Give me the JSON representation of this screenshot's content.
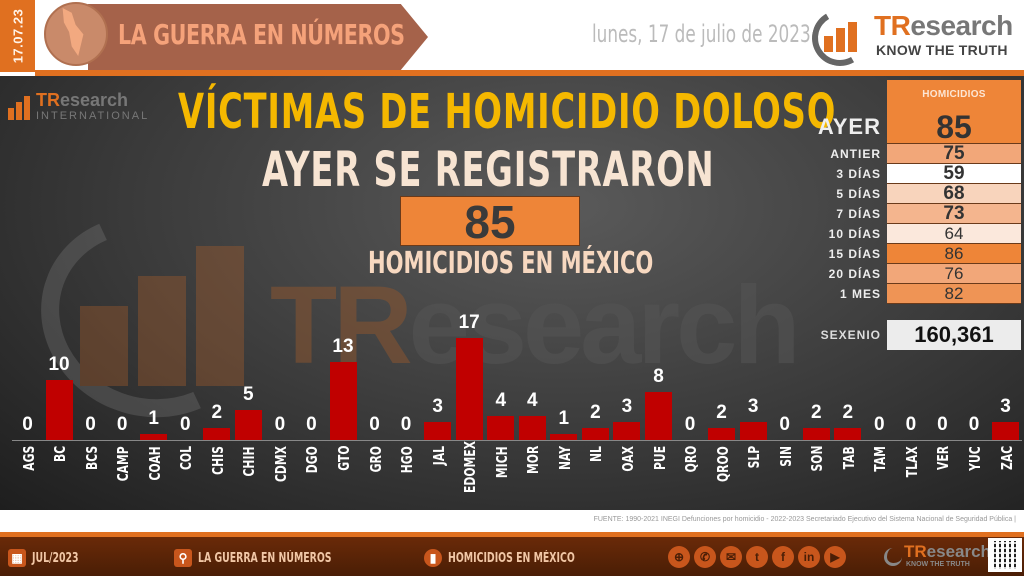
{
  "header": {
    "date_short": "17.07.23",
    "banner_title": "LA GUERRA EN NÚMEROS",
    "date_long": "lunes, 17 de julio de 2023",
    "logo_brand_tr": "TR",
    "logo_brand_rest": "esearch",
    "logo_tagline": "KNOW THE TRUTH",
    "accent_color": "#e07020"
  },
  "main": {
    "intl_logo_tr": "TR",
    "intl_logo_rest": "esearch",
    "intl_logo_sub": "INTERNATIONAL",
    "title": "VÍCTIMAS DE HOMICIDIO DOLOSO",
    "subtitle_top": "AYER SE REGISTRARON",
    "big_number": "85",
    "subtitle_bottom": "HOMICIDIOS EN MÉXICO",
    "watermark_tr": "TR",
    "watermark_rest": "esearch"
  },
  "stats": {
    "header": "HOMICIDIOS",
    "rows": [
      {
        "label": "AYER",
        "value": "85",
        "bg": "#ee8538"
      },
      {
        "label": "ANTIER",
        "value": "75",
        "bg": "#f2a779"
      },
      {
        "label": "3 DÍAS",
        "value": "59",
        "bg": "#ffffff"
      },
      {
        "label": "5 DÍAS",
        "value": "68",
        "bg": "#f8d4bc"
      },
      {
        "label": "7 DÍAS",
        "value": "73",
        "bg": "#f4b58e"
      },
      {
        "label": "10 DÍAS",
        "value": "64",
        "bg": "#fbe8dc"
      },
      {
        "label": "15 DÍAS",
        "value": "86",
        "bg": "#ee8538"
      },
      {
        "label": "20 DÍAS",
        "value": "76",
        "bg": "#f2a779"
      },
      {
        "label": "1 MES",
        "value": "82",
        "bg": "#ef9455"
      }
    ],
    "sexenio_label": "SEXENIO",
    "sexenio_value": "160,361"
  },
  "chart_data": {
    "type": "bar",
    "title": "VÍCTIMAS DE HOMICIDIO DOLOSO",
    "subtitle": "AYER SE REGISTRARON 85 HOMICIDIOS EN MÉXICO",
    "xlabel": "",
    "ylabel": "",
    "categories": [
      "AGS",
      "BC",
      "BCS",
      "CAMP",
      "COAH",
      "COL",
      "CHIS",
      "CHIH",
      "CDMX",
      "DGO",
      "GTO",
      "GRO",
      "HGO",
      "JAL",
      "EDOMEX",
      "MICH",
      "MOR",
      "NAY",
      "NL",
      "OAX",
      "PUE",
      "QRO",
      "QROO",
      "SLP",
      "SIN",
      "SON",
      "TAB",
      "TAM",
      "TLAX",
      "VER",
      "YUC",
      "ZAC"
    ],
    "values": [
      0,
      10,
      0,
      0,
      1,
      0,
      2,
      5,
      0,
      0,
      13,
      0,
      0,
      3,
      17,
      4,
      4,
      1,
      2,
      3,
      8,
      0,
      2,
      3,
      0,
      2,
      2,
      0,
      0,
      0,
      0,
      3
    ],
    "bar_color": "#c00000",
    "grid": false,
    "data_labels": true,
    "ylim": [
      0,
      17
    ]
  },
  "source": {
    "text": "FUENTE: 1990-2021 INEGI Defunciones por homicidio - 2022-2023 Secretariado Ejecutivo del Sistema Nacional de Seguridad Pública |"
  },
  "footer": {
    "items": [
      {
        "icon": "calendar-icon",
        "label": "JUL/2023"
      },
      {
        "icon": "map-pin-icon",
        "label": "LA GUERRA EN NÚMEROS"
      },
      {
        "icon": "chat-chart-icon",
        "label": "HOMICIDIOS EN MÉXICO"
      }
    ],
    "socials": [
      "globe",
      "phone",
      "email",
      "twitter",
      "facebook",
      "linkedin",
      "youtube"
    ],
    "logo_tr": "TR",
    "logo_rest": "esearch",
    "logo_tagline": "KNOW THE TRUTH"
  }
}
